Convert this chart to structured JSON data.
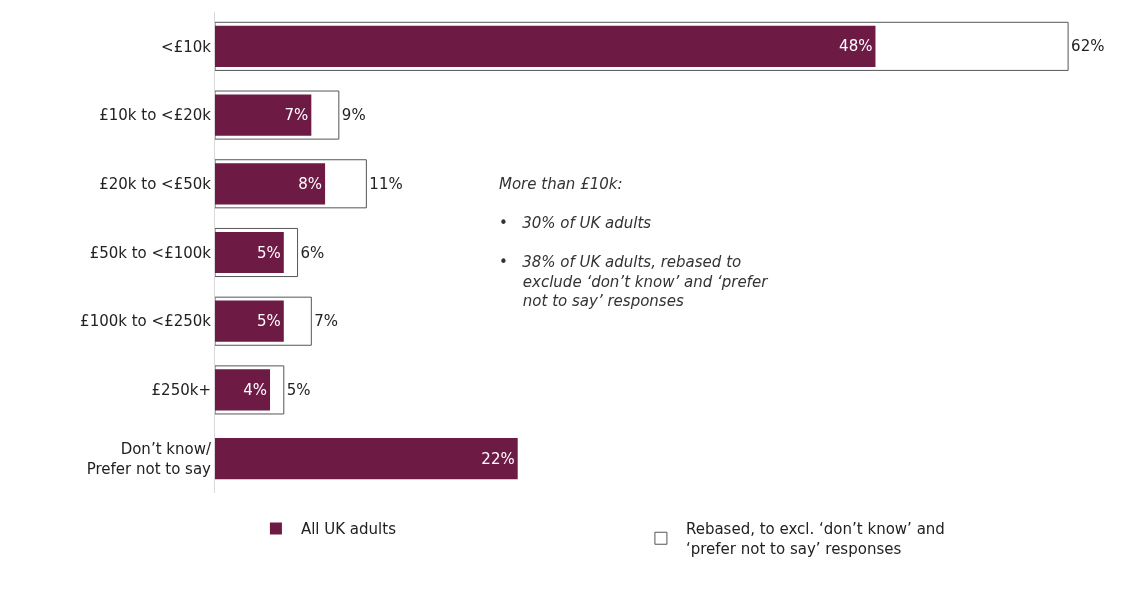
{
  "chart_data": {
    "type": "bar",
    "orientation": "horizontal",
    "categories": [
      "<£10k",
      "£10k to <£20k",
      "£20k to <£50k",
      "£50k to <£100k",
      "£100k to <£250k",
      "£250k+",
      "Don’t know/\nPrefer not to say"
    ],
    "series": [
      {
        "name": "Rebased, to excl. ‘don’t know’ and ‘prefer not to say’ responses",
        "color": "#ffffff",
        "values": [
          62,
          9,
          11,
          6,
          7,
          5,
          null
        ],
        "value_labels": [
          "62%",
          "9%",
          "11%",
          "6%",
          "7%",
          "5%",
          null
        ]
      },
      {
        "name": "All UK adults",
        "color": "#6d1a45",
        "values": [
          48,
          7,
          8,
          5,
          5,
          4,
          22
        ],
        "value_labels": [
          "48%",
          "7%",
          "8%",
          "5%",
          "5%",
          "4%",
          "22%"
        ]
      }
    ],
    "tick_labels": "y",
    "legend": "bottom",
    "annotations": [
      "More than £10k:",
      "•   30% of UK adults",
      "•   38% of UK adults, rebased to exclude ‘don’t know’ and ‘prefer not to say’ responses"
    ]
  }
}
